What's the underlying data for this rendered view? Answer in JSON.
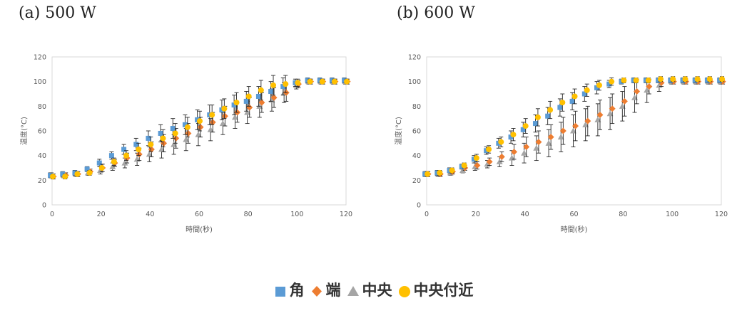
{
  "panels": [
    {
      "label": "(a)",
      "title": "500 W"
    },
    {
      "label": "(b)",
      "title": "600 W"
    }
  ],
  "colors": {
    "角": "#5B9BD5",
    "端": "#ED7D31",
    "中央": "#A5A5A5",
    "中央付近": "#FFC000"
  },
  "chart_data": [
    {
      "type": "scatter",
      "title": "(a) 500 W",
      "xlabel": "時間(秒)",
      "ylabel": "温度(°C)",
      "xlim": [
        0,
        120
      ],
      "ylim": [
        0,
        120
      ],
      "xticks": [
        0,
        20,
        40,
        60,
        80,
        100,
        120
      ],
      "yticks": [
        0,
        20,
        40,
        60,
        80,
        100,
        120
      ],
      "grid": false,
      "legend": "bottom",
      "x": [
        0,
        5,
        10,
        15,
        20,
        25,
        30,
        35,
        40,
        45,
        50,
        55,
        60,
        65,
        70,
        75,
        80,
        85,
        90,
        95,
        100,
        105,
        110,
        115,
        120
      ],
      "series": [
        {
          "name": "角",
          "marker": "square",
          "values": [
            24,
            25,
            26,
            29,
            34,
            40,
            45,
            49,
            54,
            58,
            62,
            65,
            69,
            73,
            77,
            81,
            84,
            88,
            92,
            96,
            99,
            101,
            101,
            101,
            101
          ],
          "error": [
            2,
            2,
            2,
            2,
            3,
            3,
            4,
            5,
            6,
            7,
            8,
            8,
            8,
            8,
            8,
            8,
            8,
            8,
            8,
            7,
            3,
            2,
            2,
            2,
            2
          ]
        },
        {
          "name": "端",
          "marker": "diamond",
          "values": [
            23,
            24,
            25,
            27,
            30,
            34,
            38,
            41,
            45,
            50,
            54,
            58,
            63,
            67,
            72,
            75,
            79,
            83,
            87,
            91,
            98,
            100,
            100,
            100,
            100
          ],
          "error": [
            2,
            2,
            2,
            2,
            3,
            3,
            4,
            5,
            6,
            7,
            8,
            8,
            8,
            8,
            8,
            8,
            8,
            8,
            8,
            7,
            3,
            2,
            2,
            2,
            2
          ]
        },
        {
          "name": "中央",
          "marker": "triangle",
          "values": [
            24,
            24,
            25,
            26,
            28,
            31,
            34,
            37,
            41,
            45,
            49,
            53,
            57,
            61,
            66,
            71,
            75,
            80,
            85,
            91,
            97,
            100,
            100,
            100,
            100
          ],
          "error": [
            2,
            2,
            2,
            2,
            3,
            3,
            4,
            5,
            6,
            7,
            8,
            9,
            9,
            9,
            9,
            9,
            9,
            9,
            9,
            8,
            3,
            2,
            2,
            2,
            2
          ]
        },
        {
          "name": "中央付近",
          "marker": "circle",
          "values": [
            23,
            23,
            25,
            26,
            30,
            35,
            40,
            45,
            49,
            54,
            58,
            63,
            68,
            73,
            78,
            83,
            88,
            93,
            97,
            98,
            99,
            100,
            100,
            100,
            100
          ],
          "error": [
            2,
            2,
            2,
            2,
            3,
            3,
            4,
            5,
            6,
            7,
            8,
            8,
            8,
            8,
            8,
            8,
            8,
            8,
            8,
            7,
            3,
            2,
            2,
            2,
            2
          ]
        }
      ]
    },
    {
      "type": "scatter",
      "title": "(b) 600 W",
      "xlabel": "時間(秒)",
      "ylabel": "温度(°C)",
      "xlim": [
        0,
        120
      ],
      "ylim": [
        0,
        120
      ],
      "xticks": [
        0,
        20,
        40,
        60,
        80,
        100,
        120
      ],
      "yticks": [
        0,
        20,
        40,
        60,
        80,
        100,
        120
      ],
      "grid": false,
      "legend": "bottom",
      "x": [
        0,
        5,
        10,
        15,
        20,
        25,
        30,
        35,
        40,
        45,
        50,
        55,
        60,
        65,
        70,
        75,
        80,
        85,
        90,
        95,
        100,
        105,
        110,
        115,
        120
      ],
      "series": [
        {
          "name": "角",
          "marker": "square",
          "values": [
            25,
            26,
            28,
            31,
            37,
            44,
            50,
            55,
            61,
            66,
            72,
            79,
            84,
            90,
            95,
            98,
            100,
            101,
            101,
            101,
            101,
            101,
            101,
            101,
            101
          ],
          "error": [
            2,
            2,
            2,
            2,
            3,
            3,
            4,
            5,
            6,
            7,
            7,
            7,
            7,
            6,
            5,
            3,
            2,
            2,
            2,
            2,
            2,
            2,
            2,
            2,
            2
          ]
        },
        {
          "name": "端",
          "marker": "diamond",
          "values": [
            25,
            25,
            27,
            30,
            32,
            35,
            39,
            43,
            47,
            51,
            55,
            60,
            64,
            68,
            73,
            78,
            84,
            92,
            96,
            99,
            100,
            100,
            100,
            100,
            100
          ],
          "error": [
            2,
            2,
            2,
            2,
            3,
            3,
            4,
            6,
            8,
            9,
            10,
            11,
            12,
            12,
            12,
            12,
            12,
            10,
            6,
            3,
            2,
            2,
            2,
            2,
            2
          ]
        },
        {
          "name": "中央",
          "marker": "triangle",
          "values": [
            25,
            25,
            26,
            28,
            31,
            33,
            35,
            38,
            42,
            46,
            50,
            55,
            60,
            65,
            69,
            74,
            80,
            87,
            93,
            97,
            100,
            100,
            100,
            100,
            100
          ],
          "error": [
            2,
            2,
            2,
            2,
            3,
            3,
            4,
            6,
            8,
            10,
            11,
            12,
            13,
            13,
            13,
            13,
            12,
            12,
            10,
            5,
            2,
            2,
            2,
            2,
            2
          ]
        },
        {
          "name": "中央付近",
          "marker": "circle",
          "values": [
            25,
            26,
            28,
            32,
            38,
            45,
            51,
            57,
            64,
            71,
            77,
            83,
            88,
            93,
            97,
            100,
            101,
            101,
            101,
            102,
            102,
            102,
            102,
            102,
            102
          ],
          "error": [
            2,
            2,
            2,
            2,
            3,
            3,
            4,
            5,
            6,
            7,
            7,
            7,
            6,
            5,
            4,
            3,
            2,
            2,
            2,
            2,
            2,
            2,
            2,
            2,
            2
          ]
        }
      ]
    }
  ]
}
